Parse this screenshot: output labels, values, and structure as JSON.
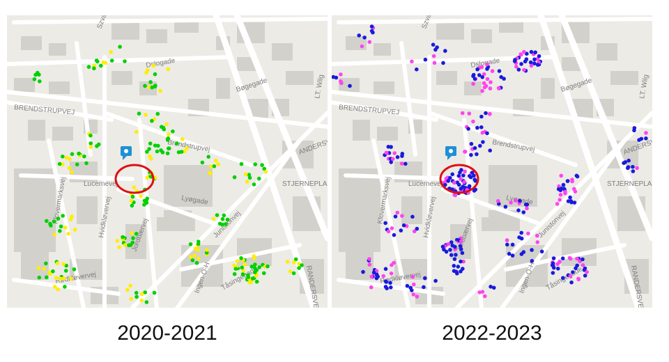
{
  "panels": [
    {
      "caption": "2020-2021",
      "dot_colors": [
        "#00d000",
        "#ffee00"
      ],
      "highlight_color": "#dd1111",
      "marker_color": "#1e90d6"
    },
    {
      "caption": "2022-2023",
      "dot_colors": [
        "#1a1adc",
        "#ff44ee"
      ],
      "highlight_color": "#dd1111",
      "marker_color": "#1e90d6"
    }
  ],
  "map": {
    "base_color": "#ecebe6",
    "block_color": "#d2d1cc",
    "road_color": "#ffffff",
    "street_labels": [
      "Dslogade",
      "Bøgegade",
      "BRENDSTRUPVEJ",
      "Brendstrupvej",
      "Lucernevej",
      "Lyøgade",
      "Klovermarksvej",
      "Hvidkløvervej",
      "Jordbærvej",
      "Tåsingegade",
      "Rødkløvervej",
      "STJERNEPLADS",
      "RANDERSVEJ",
      "LT. Wilg",
      "Szvan",
      "ANDERSVEJ",
      "Ingen-O-H",
      "Junistonvej"
    ]
  }
}
